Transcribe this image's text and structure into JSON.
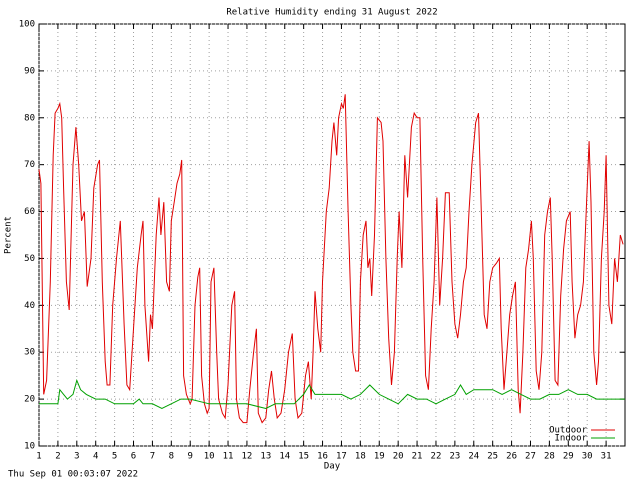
{
  "chart_data": {
    "type": "line",
    "title": "Relative Humidity ending 31 August 2022",
    "xlabel": "Day",
    "ylabel": "Percent",
    "footer": "Thu Sep 01 00:03:07 2022",
    "xlim": [
      1,
      32
    ],
    "ylim": [
      10,
      100
    ],
    "xticks": [
      1,
      2,
      3,
      4,
      5,
      6,
      7,
      8,
      9,
      10,
      11,
      12,
      13,
      14,
      15,
      16,
      17,
      18,
      19,
      20,
      21,
      22,
      23,
      24,
      25,
      26,
      27,
      28,
      29,
      30,
      31
    ],
    "yticks": [
      10,
      20,
      30,
      40,
      50,
      60,
      70,
      80,
      90,
      100
    ],
    "grid": true,
    "legend": "bottom-right",
    "series": [
      {
        "name": "Outdoor",
        "color": "#e00000",
        "x": [
          1,
          1.1,
          1.25,
          1.4,
          1.6,
          1.75,
          1.85,
          2,
          2.1,
          2.2,
          2.3,
          2.45,
          2.6,
          2.8,
          2.95,
          3.1,
          3.25,
          3.4,
          3.55,
          3.75,
          3.9,
          4.1,
          4.2,
          4.35,
          4.5,
          4.6,
          4.75,
          4.9,
          5.1,
          5.3,
          5.5,
          5.65,
          5.8,
          6,
          6.2,
          6.4,
          6.5,
          6.6,
          6.8,
          6.9,
          7,
          7.2,
          7.35,
          7.45,
          7.6,
          7.75,
          7.9,
          8,
          8.15,
          8.3,
          8.45,
          8.55,
          8.65,
          8.8,
          9,
          9.1,
          9.25,
          9.4,
          9.5,
          9.6,
          9.75,
          9.9,
          10,
          10.1,
          10.25,
          10.4,
          10.5,
          10.7,
          10.85,
          11,
          11.2,
          11.35,
          11.45,
          11.6,
          11.8,
          12,
          12.15,
          12.35,
          12.5,
          12.6,
          12.8,
          13,
          13.15,
          13.3,
          13.45,
          13.6,
          13.8,
          14,
          14.2,
          14.4,
          14.55,
          14.7,
          14.9,
          15.1,
          15.25,
          15.4,
          15.5,
          15.6,
          15.75,
          15.9,
          16,
          16.2,
          16.35,
          16.5,
          16.6,
          16.75,
          16.85,
          17,
          17.1,
          17.2,
          17.35,
          17.5,
          17.6,
          17.75,
          17.9,
          18,
          18.15,
          18.3,
          18.4,
          18.5,
          18.6,
          18.75,
          18.9,
          19.1,
          19.2,
          19.35,
          19.5,
          19.65,
          19.8,
          19.95,
          20.05,
          20.2,
          20.35,
          20.5,
          20.7,
          20.85,
          21,
          21.15,
          21.3,
          21.45,
          21.6,
          21.75,
          21.9,
          22.05,
          22.2,
          22.35,
          22.5,
          22.7,
          22.85,
          23,
          23.15,
          23.3,
          23.45,
          23.6,
          23.75,
          23.9,
          24.1,
          24.25,
          24.4,
          24.55,
          24.7,
          24.85,
          25,
          25.2,
          25.35,
          25.45,
          25.6,
          25.75,
          25.9,
          26.05,
          26.2,
          26.35,
          26.45,
          26.6,
          26.75,
          26.9,
          27.05,
          27.15,
          27.3,
          27.45,
          27.6,
          27.75,
          27.9,
          28.05,
          28.15,
          28.3,
          28.45,
          28.6,
          28.75,
          28.9,
          29.1,
          29.2,
          29.35,
          29.5,
          29.65,
          29.8,
          29.95,
          30.1,
          30.2,
          30.35,
          30.5,
          30.6,
          30.75,
          30.9,
          31,
          31.15,
          31.3,
          31.45,
          31.6,
          31.75,
          31.9
        ],
        "values": [
          69,
          66,
          21,
          24,
          45,
          72,
          81,
          82,
          83,
          80,
          65,
          45,
          39,
          70,
          78,
          70,
          58,
          60,
          44,
          50,
          65,
          70,
          71,
          45,
          28,
          23,
          23,
          40,
          50,
          58,
          36,
          23,
          22,
          35,
          48,
          55,
          58,
          40,
          28,
          38,
          35,
          55,
          63,
          55,
          62,
          45,
          43,
          58,
          62,
          66,
          68,
          71,
          25,
          21,
          19,
          20,
          40,
          46,
          48,
          25,
          19,
          17,
          18,
          45,
          48,
          30,
          20,
          17,
          16,
          23,
          40,
          43,
          20,
          16,
          15,
          15,
          22,
          30,
          35,
          17,
          15,
          16,
          22,
          26,
          20,
          16,
          17,
          22,
          30,
          34,
          20,
          16,
          17,
          25,
          28,
          20,
          30,
          43,
          35,
          30,
          45,
          60,
          65,
          75,
          79,
          72,
          80,
          83,
          82,
          85,
          60,
          40,
          30,
          26,
          26,
          45,
          55,
          58,
          48,
          50,
          42,
          55,
          80,
          79,
          75,
          50,
          33,
          23,
          30,
          50,
          60,
          48,
          72,
          63,
          78,
          81,
          80,
          80,
          50,
          25,
          22,
          35,
          45,
          63,
          40,
          50,
          64,
          64,
          45,
          36,
          33,
          38,
          45,
          48,
          60,
          70,
          79,
          81,
          60,
          38,
          35,
          45,
          48,
          49,
          50,
          35,
          22,
          30,
          38,
          42,
          45,
          22,
          17,
          30,
          48,
          52,
          58,
          50,
          26,
          22,
          30,
          55,
          60,
          63,
          50,
          24,
          23,
          42,
          52,
          58,
          60,
          45,
          33,
          38,
          40,
          45,
          60,
          75,
          62,
          30,
          23,
          28,
          50,
          60,
          72,
          40,
          36,
          50,
          45,
          55,
          53
        ]
      },
      {
        "name": "Indoor",
        "color": "#00a000",
        "x": [
          1,
          2,
          2.1,
          2.3,
          2.5,
          2.8,
          3,
          3.2,
          3.5,
          4,
          4.5,
          5,
          6,
          6.3,
          6.5,
          7,
          7.5,
          8,
          8.5,
          9,
          10,
          11,
          12,
          13,
          13.5,
          14,
          14.5,
          15,
          15.3,
          15.6,
          16,
          17,
          17.5,
          18,
          18.5,
          19,
          19.5,
          20,
          20.5,
          21,
          21.5,
          22,
          22.5,
          23,
          23.3,
          23.6,
          24,
          25,
          25.5,
          26,
          26.5,
          27,
          27.5,
          28,
          28.5,
          29,
          29.5,
          30,
          30.5,
          31,
          32
        ],
        "values": [
          19,
          19,
          22,
          21,
          20,
          21,
          24,
          22,
          21,
          20,
          20,
          19,
          19,
          20,
          19,
          19,
          18,
          19,
          20,
          20,
          19,
          19,
          19,
          18,
          19,
          19,
          19,
          21,
          23,
          21,
          21,
          21,
          20,
          21,
          23,
          21,
          20,
          19,
          21,
          20,
          20,
          19,
          20,
          21,
          23,
          21,
          22,
          22,
          21,
          22,
          21,
          20,
          20,
          21,
          21,
          22,
          21,
          21,
          20,
          20,
          20
        ]
      }
    ]
  }
}
